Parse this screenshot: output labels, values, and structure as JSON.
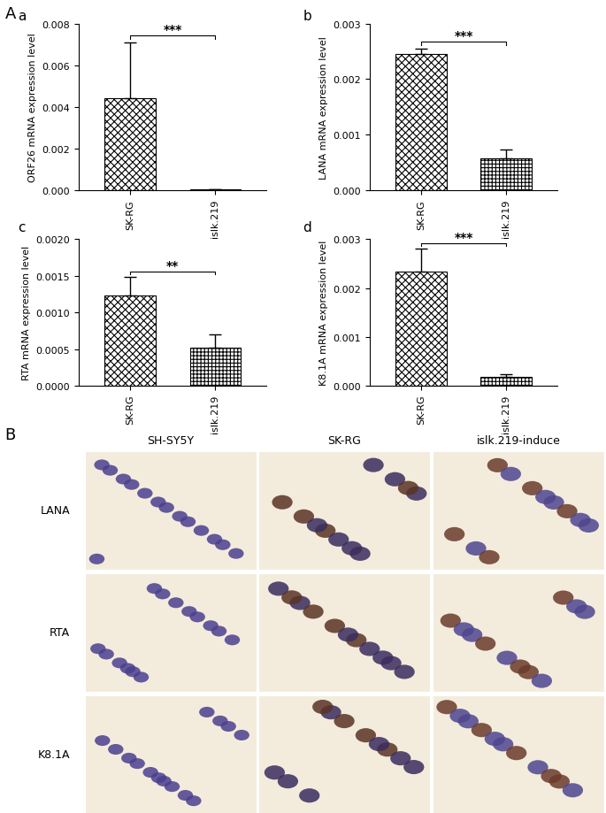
{
  "chart_data": [
    {
      "type": "bar",
      "panel": "a",
      "y_label": "ORF26 mRNA expression level",
      "categories": [
        "SK-RG",
        "islk.219"
      ],
      "values": [
        0.0044,
        3e-05
      ],
      "errors": [
        0.0027,
        5e-06
      ],
      "color": "#ffffff",
      "annotation": "***",
      "ylim": [
        0,
        0.008
      ],
      "yticks": [
        {
          "value": 0,
          "label": "0.000"
        },
        {
          "value": 0.002,
          "label": "0.002"
        },
        {
          "value": 0.004,
          "label": "0.004"
        },
        {
          "value": 0.006,
          "label": "0.006"
        },
        {
          "value": 0.008,
          "label": "0.008"
        }
      ]
    },
    {
      "type": "bar",
      "panel": "b",
      "y_label": "LANA mRNA expression level",
      "categories": [
        "SK-RG",
        "islk.219"
      ],
      "values": [
        0.00245,
        0.00058
      ],
      "errors": [
        0.0001,
        0.00015
      ],
      "color": "#ffffff",
      "annotation": "***",
      "ylim": [
        0,
        0.003
      ],
      "yticks": [
        {
          "value": 0,
          "label": "0.000"
        },
        {
          "value": 0.001,
          "label": "0.001"
        },
        {
          "value": 0.002,
          "label": "0.002"
        },
        {
          "value": 0.003,
          "label": "0.003"
        }
      ]
    },
    {
      "type": "bar",
      "panel": "c",
      "y_label": "RTA mRNA expression level",
      "categories": [
        "SK-RG",
        "islk.219"
      ],
      "values": [
        0.00123,
        0.00052
      ],
      "errors": [
        0.00025,
        0.00018
      ],
      "color": "#ffffff",
      "annotation": "**",
      "ylim": [
        0,
        0.002
      ],
      "yticks": [
        {
          "value": 0,
          "label": "0.0000"
        },
        {
          "value": 0.0005,
          "label": "0.0005"
        },
        {
          "value": 0.001,
          "label": "0.0010"
        },
        {
          "value": 0.0015,
          "label": "0.0015"
        },
        {
          "value": 0.002,
          "label": "0.0020"
        }
      ]
    },
    {
      "type": "bar",
      "panel": "d",
      "y_label": "K8.1A mRNA expression level",
      "categories": [
        "SK-RG",
        "islk.219"
      ],
      "values": [
        0.00233,
        0.00018
      ],
      "errors": [
        0.00047,
        5e-05
      ],
      "color": "#ffffff",
      "annotation": "***",
      "ylim": [
        0,
        0.003
      ],
      "yticks": [
        {
          "value": 0,
          "label": "0.000"
        },
        {
          "value": 0.001,
          "label": "0.001"
        },
        {
          "value": 0.002,
          "label": "0.002"
        },
        {
          "value": 0.003,
          "label": "0.003"
        }
      ]
    }
  ],
  "panel_labels": [
    "A",
    "B"
  ],
  "image_grid": {
    "columns": [
      "SH-SY5Y",
      "SK-RG",
      "islk.219-induce"
    ],
    "rows": [
      "LANA",
      "RTA",
      "K8.1A"
    ]
  }
}
